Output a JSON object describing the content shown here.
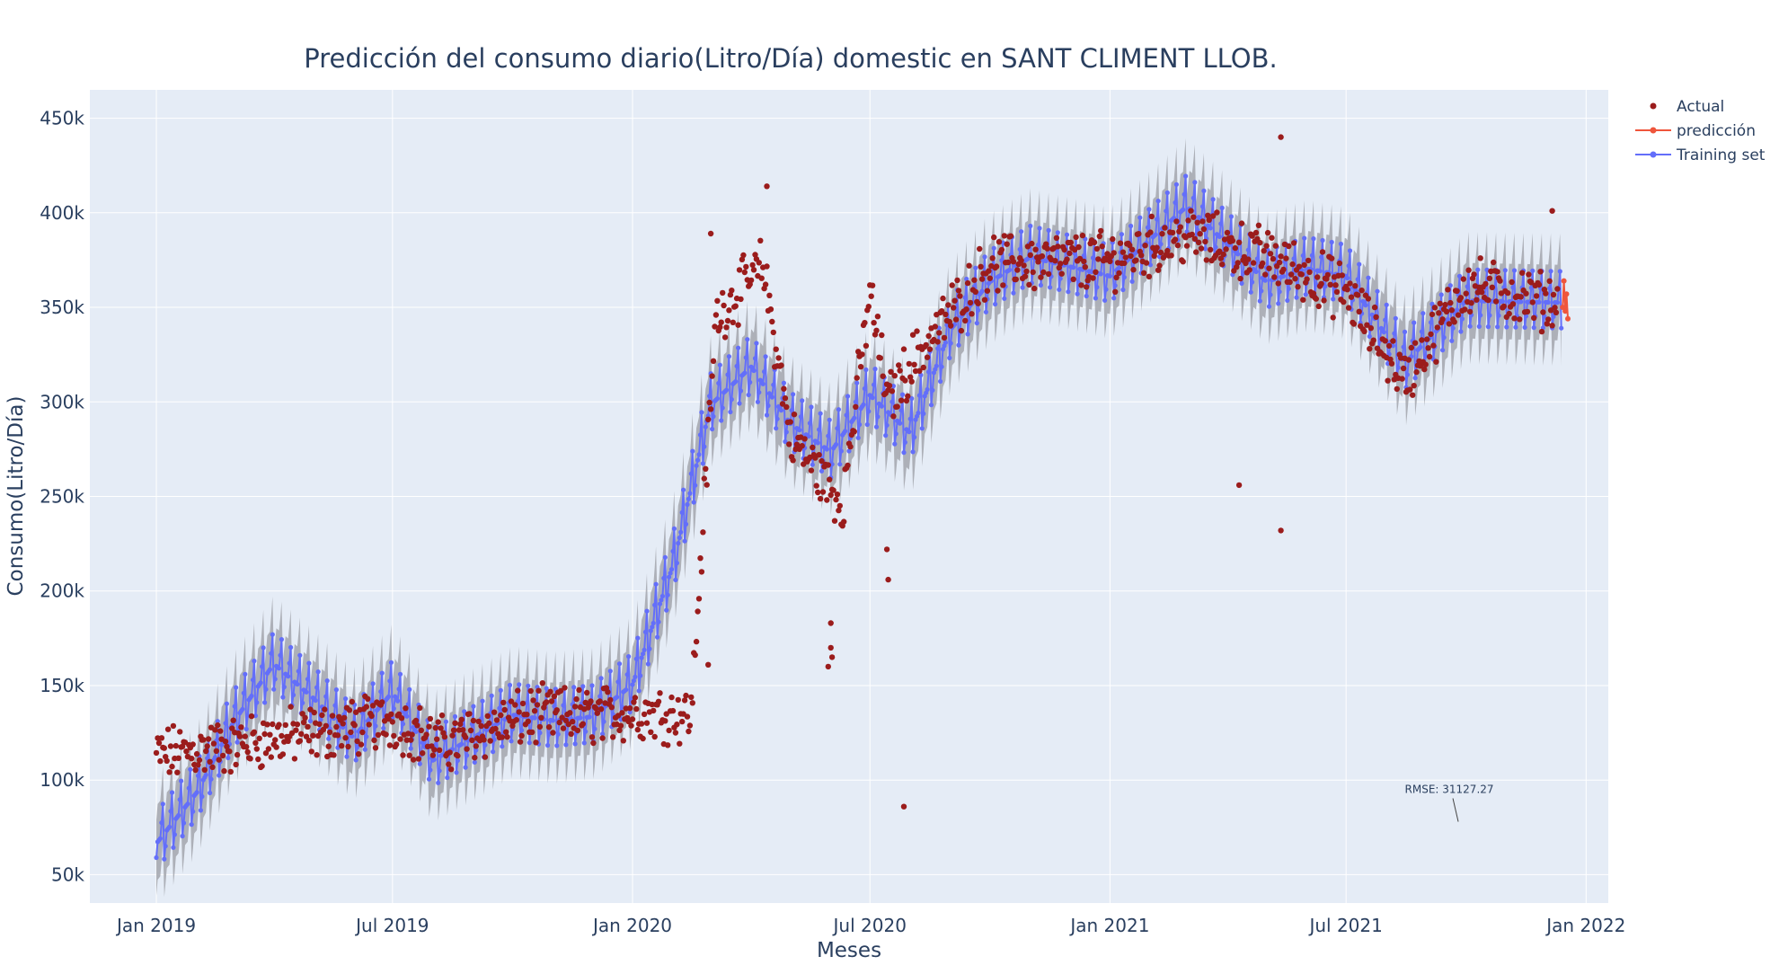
{
  "chart_data": {
    "type": "scatter",
    "title": "Predicción del consumo diario(Litro/Día) domestic en SANT CLIMENT LLOB.",
    "xlabel": "Meses",
    "ylabel": "Consumo(Litro/Día)",
    "x_range": [
      "2018-11-11",
      "2022-01-18"
    ],
    "ylim": [
      35000,
      465000
    ],
    "x_ticks": [
      {
        "date": "2019-01-01",
        "label": "Jan 2019"
      },
      {
        "date": "2019-07-01",
        "label": "Jul 2019"
      },
      {
        "date": "2020-01-01",
        "label": "Jan 2020"
      },
      {
        "date": "2020-07-01",
        "label": "Jul 2020"
      },
      {
        "date": "2021-01-01",
        "label": "Jan 2021"
      },
      {
        "date": "2021-07-01",
        "label": "Jul 2021"
      },
      {
        "date": "2022-01-01",
        "label": "Jan 2022"
      }
    ],
    "y_ticks": [
      {
        "value": 50000,
        "label": "50k"
      },
      {
        "value": 100000,
        "label": "100k"
      },
      {
        "value": 150000,
        "label": "150k"
      },
      {
        "value": 200000,
        "label": "200k"
      },
      {
        "value": 250000,
        "label": "250k"
      },
      {
        "value": 300000,
        "label": "300k"
      },
      {
        "value": 350000,
        "label": "350k"
      },
      {
        "value": 400000,
        "label": "400k"
      },
      {
        "value": 450000,
        "label": "450k"
      }
    ],
    "grid": true,
    "legend_position": "top-right",
    "plot_background": "#e5ecf6",
    "series": [
      {
        "name": "Actual",
        "mode": "markers",
        "color": "#9b1c1c",
        "trend": [
          [
            "2019-01-01",
            113000
          ],
          [
            "2019-02-15",
            117000
          ],
          [
            "2019-04-01",
            122000
          ],
          [
            "2019-05-15",
            126000
          ],
          [
            "2019-07-01",
            132000
          ],
          [
            "2019-08-10",
            118000
          ],
          [
            "2019-09-01",
            125000
          ],
          [
            "2019-10-15",
            134000
          ],
          [
            "2019-12-01",
            134000
          ],
          [
            "2020-01-01",
            136000
          ],
          [
            "2020-02-15",
            135000
          ],
          [
            "2020-03-05",
            345000
          ],
          [
            "2020-04-10",
            372000
          ],
          [
            "2020-05-01",
            282000
          ],
          [
            "2020-06-10",
            246000
          ],
          [
            "2020-07-01",
            358000
          ],
          [
            "2020-07-15",
            300000
          ],
          [
            "2020-08-01",
            320000
          ],
          [
            "2020-10-01",
            373000
          ],
          [
            "2021-01-01",
            375000
          ],
          [
            "2021-03-01",
            388000
          ],
          [
            "2021-05-01",
            377000
          ],
          [
            "2021-07-01",
            358000
          ],
          [
            "2021-08-15",
            312000
          ],
          [
            "2021-10-01",
            362000
          ],
          [
            "2021-12-10",
            352000
          ]
        ],
        "spread": 12000,
        "outliers": [
          [
            "2020-06-01",
            183000
          ],
          [
            "2020-06-01",
            170000
          ],
          [
            "2020-05-30",
            160000
          ],
          [
            "2020-06-02",
            165000
          ],
          [
            "2020-07-27",
            86000
          ],
          [
            "2021-04-10",
            256000
          ],
          [
            "2021-05-12",
            232000
          ],
          [
            "2021-05-12",
            440000
          ],
          [
            "2020-03-01",
            389000
          ],
          [
            "2020-04-13",
            414000
          ],
          [
            "2020-07-15",
            206000
          ],
          [
            "2020-07-14",
            222000
          ],
          [
            "2020-02-28",
            161000
          ],
          [
            "2021-12-06",
            401000
          ]
        ]
      },
      {
        "name": "predicción",
        "mode": "lines+markers",
        "color": "#ef553b",
        "points": [
          [
            "2021-12-14",
            350000
          ],
          [
            "2021-12-15",
            364000
          ],
          [
            "2021-12-16",
            348000
          ],
          [
            "2021-12-17",
            357000
          ],
          [
            "2021-12-18",
            344000
          ]
        ]
      },
      {
        "name": "Training set",
        "mode": "lines+markers",
        "color": "#636efa",
        "trend": [
          [
            "2019-01-01",
            68000
          ],
          [
            "2019-02-01",
            95000
          ],
          [
            "2019-03-01",
            132000
          ],
          [
            "2019-04-01",
            163000
          ],
          [
            "2019-05-01",
            145000
          ],
          [
            "2019-06-01",
            124000
          ],
          [
            "2019-07-01",
            148000
          ],
          [
            "2019-08-01",
            112000
          ],
          [
            "2019-09-01",
            124000
          ],
          [
            "2019-10-01",
            136000
          ],
          [
            "2019-11-01",
            133000
          ],
          [
            "2019-12-01",
            135000
          ],
          [
            "2020-01-01",
            152000
          ],
          [
            "2020-02-01",
            215000
          ],
          [
            "2020-03-01",
            300000
          ],
          [
            "2020-04-01",
            320000
          ],
          [
            "2020-05-01",
            290000
          ],
          [
            "2020-06-01",
            275000
          ],
          [
            "2020-07-01",
            305000
          ],
          [
            "2020-08-01",
            285000
          ],
          [
            "2020-09-01",
            340000
          ],
          [
            "2020-10-01",
            365000
          ],
          [
            "2020-11-01",
            378000
          ],
          [
            "2021-01-01",
            368000
          ],
          [
            "2021-03-01",
            405000
          ],
          [
            "2021-04-01",
            385000
          ],
          [
            "2021-05-01",
            365000
          ],
          [
            "2021-06-01",
            372000
          ],
          [
            "2021-07-01",
            368000
          ],
          [
            "2021-08-15",
            322000
          ],
          [
            "2021-10-01",
            355000
          ],
          [
            "2021-12-13",
            354000
          ]
        ],
        "weekly_amplitude": 15000,
        "band_half_width": 20000,
        "band_color": "#a3a6ad"
      }
    ],
    "annotation": {
      "text": "RMSE: 31127.27",
      "x": "2021-09-25",
      "y": 78000
    }
  }
}
